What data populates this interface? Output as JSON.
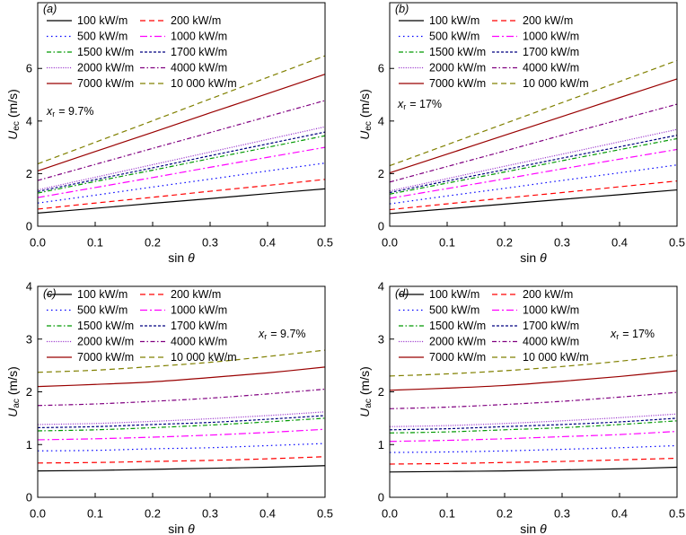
{
  "chart_data": [
    {
      "panel": "(a)",
      "type": "line",
      "x": [
        0,
        0.1,
        0.2,
        0.3,
        0.4,
        0.5
      ],
      "xlim": [
        0,
        0.5
      ],
      "ylim": [
        0,
        8.5
      ],
      "xticks": [
        "0.0",
        "0.1",
        "0.2",
        "0.3",
        "0.4",
        "0.5"
      ],
      "yticks": [
        "0",
        "2",
        "4",
        "6"
      ],
      "xlabel": {
        "text": "sin",
        "var": "θ"
      },
      "ylabel": {
        "var": "U",
        "sub": "ec",
        "unit": "(m/s)"
      },
      "annotation": {
        "var": "x",
        "sub": "r",
        "text": "= 9.7%"
      },
      "series": [
        {
          "name": "100 kW/m",
          "color": "#000000",
          "style": "solid",
          "values": [
            0.5,
            0.68,
            0.87,
            1.05,
            1.24,
            1.42
          ]
        },
        {
          "name": "200 kW/m",
          "color": "#ff0000",
          "style": "dashed",
          "values": [
            0.65,
            0.88,
            1.1,
            1.33,
            1.55,
            1.78
          ]
        },
        {
          "name": "500 kW/m",
          "color": "#0000ff",
          "style": "dotted",
          "values": [
            0.88,
            1.18,
            1.49,
            1.79,
            2.1,
            2.4
          ]
        },
        {
          "name": "1000 kW/m",
          "color": "#ff00ff",
          "style": "dash-dot",
          "values": [
            1.09,
            1.47,
            1.85,
            2.24,
            2.62,
            3.0
          ]
        },
        {
          "name": "1500 kW/m",
          "color": "#009900",
          "style": "short-dash-dot",
          "values": [
            1.26,
            1.7,
            2.13,
            2.57,
            3.0,
            3.44
          ]
        },
        {
          "name": "1700 kW/m",
          "color": "#000080",
          "style": "short-dash",
          "values": [
            1.32,
            1.77,
            2.22,
            2.68,
            3.13,
            3.58
          ]
        },
        {
          "name": "2000 kW/m",
          "color": "#9933cc",
          "style": "fine-dotted",
          "values": [
            1.38,
            1.86,
            2.34,
            2.82,
            3.3,
            3.78
          ]
        },
        {
          "name": "4000 kW/m",
          "color": "#800080",
          "style": "short-dash-dot",
          "values": [
            1.74,
            2.35,
            2.96,
            3.56,
            4.17,
            4.78
          ]
        },
        {
          "name": "7000 kW/m",
          "color": "#990000",
          "style": "solid",
          "values": [
            2.1,
            2.84,
            3.57,
            4.31,
            5.04,
            5.78
          ]
        },
        {
          "name": "10 000 kW/m",
          "color": "#808000",
          "style": "dashed",
          "values": [
            2.37,
            3.19,
            4.01,
            4.84,
            5.66,
            6.48
          ]
        }
      ]
    },
    {
      "panel": "(b)",
      "type": "line",
      "x": [
        0,
        0.1,
        0.2,
        0.3,
        0.4,
        0.5
      ],
      "xlim": [
        0,
        0.5
      ],
      "ylim": [
        0,
        8.5
      ],
      "xticks": [
        "0.0",
        "0.1",
        "0.2",
        "0.3",
        "0.4",
        "0.5"
      ],
      "yticks": [
        "0",
        "2",
        "4",
        "6"
      ],
      "xlabel": {
        "text": "sin",
        "var": "θ"
      },
      "ylabel": {
        "var": "U",
        "sub": "ec",
        "unit": "(m/s)"
      },
      "annotation": {
        "var": "x",
        "sub": "r",
        "text": "= 17%"
      },
      "series": [
        {
          "name": "100 kW/m",
          "color": "#000000",
          "style": "solid",
          "values": [
            0.48,
            0.66,
            0.84,
            1.02,
            1.2,
            1.38
          ]
        },
        {
          "name": "200 kW/m",
          "color": "#ff0000",
          "style": "dashed",
          "values": [
            0.63,
            0.85,
            1.07,
            1.28,
            1.5,
            1.72
          ]
        },
        {
          "name": "500 kW/m",
          "color": "#0000ff",
          "style": "dotted",
          "values": [
            0.85,
            1.15,
            1.44,
            1.74,
            2.03,
            2.33
          ]
        },
        {
          "name": "1000 kW/m",
          "color": "#ff00ff",
          "style": "dash-dot",
          "values": [
            1.06,
            1.43,
            1.8,
            2.18,
            2.55,
            2.92
          ]
        },
        {
          "name": "1500 kW/m",
          "color": "#009900",
          "style": "short-dash-dot",
          "values": [
            1.22,
            1.64,
            2.06,
            2.49,
            2.91,
            3.33
          ]
        },
        {
          "name": "1700 kW/m",
          "color": "#000080",
          "style": "short-dash",
          "values": [
            1.28,
            1.72,
            2.15,
            2.59,
            3.02,
            3.46
          ]
        },
        {
          "name": "2000 kW/m",
          "color": "#9933cc",
          "style": "fine-dotted",
          "values": [
            1.34,
            1.81,
            2.28,
            2.74,
            3.21,
            3.68
          ]
        },
        {
          "name": "4000 kW/m",
          "color": "#800080",
          "style": "short-dash-dot",
          "values": [
            1.68,
            2.27,
            2.86,
            3.46,
            4.05,
            4.64
          ]
        },
        {
          "name": "7000 kW/m",
          "color": "#990000",
          "style": "solid",
          "values": [
            2.03,
            2.74,
            3.46,
            4.17,
            4.89,
            5.6
          ]
        },
        {
          "name": "10 000 kW/m",
          "color": "#808000",
          "style": "dashed",
          "values": [
            2.3,
            3.1,
            3.9,
            4.7,
            5.5,
            6.3
          ]
        }
      ]
    },
    {
      "panel": "(c)",
      "type": "line",
      "x": [
        0,
        0.1,
        0.2,
        0.3,
        0.4,
        0.5
      ],
      "xlim": [
        0,
        0.5
      ],
      "ylim": [
        0,
        4
      ],
      "xticks": [
        "0.0",
        "0.1",
        "0.2",
        "0.3",
        "0.4",
        "0.5"
      ],
      "yticks": [
        "0",
        "1",
        "2",
        "3",
        "4"
      ],
      "xlabel": {
        "text": "sin",
        "var": "θ"
      },
      "ylabel": {
        "var": "U",
        "sub": "ac",
        "unit": "(m/s)"
      },
      "annotation": {
        "var": "x",
        "sub": "r",
        "text": "= 9.7%"
      },
      "series": [
        {
          "name": "100 kW/m",
          "color": "#000000",
          "style": "solid",
          "values": [
            0.5,
            0.51,
            0.53,
            0.55,
            0.57,
            0.6
          ]
        },
        {
          "name": "200 kW/m",
          "color": "#ff0000",
          "style": "dashed",
          "values": [
            0.65,
            0.66,
            0.68,
            0.7,
            0.73,
            0.77
          ]
        },
        {
          "name": "500 kW/m",
          "color": "#0000ff",
          "style": "dotted",
          "values": [
            0.88,
            0.89,
            0.92,
            0.94,
            0.98,
            1.02
          ]
        },
        {
          "name": "1000 kW/m",
          "color": "#ff00ff",
          "style": "dash-dot",
          "values": [
            1.09,
            1.11,
            1.14,
            1.18,
            1.23,
            1.29
          ]
        },
        {
          "name": "1500 kW/m",
          "color": "#009900",
          "style": "short-dash-dot",
          "values": [
            1.26,
            1.28,
            1.32,
            1.37,
            1.43,
            1.5
          ]
        },
        {
          "name": "1700 kW/m",
          "color": "#000080",
          "style": "short-dash",
          "values": [
            1.32,
            1.34,
            1.38,
            1.42,
            1.48,
            1.55
          ]
        },
        {
          "name": "2000 kW/m",
          "color": "#9933cc",
          "style": "fine-dotted",
          "values": [
            1.38,
            1.4,
            1.44,
            1.49,
            1.55,
            1.62
          ]
        },
        {
          "name": "4000 kW/m",
          "color": "#800080",
          "style": "short-dash-dot",
          "values": [
            1.74,
            1.77,
            1.82,
            1.88,
            1.96,
            2.05
          ]
        },
        {
          "name": "7000 kW/m",
          "color": "#990000",
          "style": "solid",
          "values": [
            2.1,
            2.14,
            2.19,
            2.27,
            2.36,
            2.47
          ]
        },
        {
          "name": "10 000 kW/m",
          "color": "#808000",
          "style": "dashed",
          "values": [
            2.37,
            2.41,
            2.48,
            2.56,
            2.67,
            2.79
          ]
        }
      ]
    },
    {
      "panel": "(d)",
      "type": "line",
      "x": [
        0,
        0.1,
        0.2,
        0.3,
        0.4,
        0.5
      ],
      "xlim": [
        0,
        0.5
      ],
      "ylim": [
        0,
        4
      ],
      "xticks": [
        "0.0",
        "0.1",
        "0.2",
        "0.3",
        "0.4",
        "0.5"
      ],
      "yticks": [
        "0",
        "1",
        "2",
        "3",
        "4"
      ],
      "xlabel": {
        "text": "sin",
        "var": "θ"
      },
      "ylabel": {
        "var": "U",
        "sub": "ac",
        "unit": "(m/s)"
      },
      "annotation": {
        "var": "x",
        "sub": "r",
        "text": "= 17%"
      },
      "series": [
        {
          "name": "100 kW/m",
          "color": "#000000",
          "style": "solid",
          "values": [
            0.48,
            0.49,
            0.5,
            0.52,
            0.54,
            0.57
          ]
        },
        {
          "name": "200 kW/m",
          "color": "#ff0000",
          "style": "dashed",
          "values": [
            0.63,
            0.64,
            0.66,
            0.68,
            0.71,
            0.74
          ]
        },
        {
          "name": "500 kW/m",
          "color": "#0000ff",
          "style": "dotted",
          "values": [
            0.85,
            0.86,
            0.88,
            0.91,
            0.94,
            0.98
          ]
        },
        {
          "name": "1000 kW/m",
          "color": "#ff00ff",
          "style": "dash-dot",
          "values": [
            1.06,
            1.08,
            1.11,
            1.15,
            1.19,
            1.25
          ]
        },
        {
          "name": "1500 kW/m",
          "color": "#009900",
          "style": "short-dash-dot",
          "values": [
            1.22,
            1.24,
            1.28,
            1.32,
            1.38,
            1.45
          ]
        },
        {
          "name": "1700 kW/m",
          "color": "#000080",
          "style": "short-dash",
          "values": [
            1.28,
            1.3,
            1.34,
            1.38,
            1.43,
            1.5
          ]
        },
        {
          "name": "2000 kW/m",
          "color": "#9933cc",
          "style": "fine-dotted",
          "values": [
            1.34,
            1.36,
            1.4,
            1.45,
            1.51,
            1.58
          ]
        },
        {
          "name": "4000 kW/m",
          "color": "#800080",
          "style": "short-dash-dot",
          "values": [
            1.68,
            1.71,
            1.76,
            1.82,
            1.9,
            1.99
          ]
        },
        {
          "name": "7000 kW/m",
          "color": "#990000",
          "style": "solid",
          "values": [
            2.03,
            2.07,
            2.12,
            2.2,
            2.29,
            2.4
          ]
        },
        {
          "name": "10 000 kW/m",
          "color": "#808000",
          "style": "dashed",
          "values": [
            2.3,
            2.34,
            2.4,
            2.48,
            2.58,
            2.7
          ]
        }
      ]
    }
  ]
}
